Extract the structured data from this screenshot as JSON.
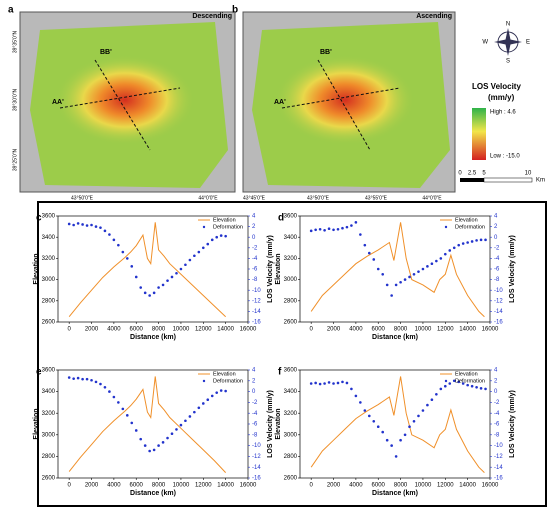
{
  "maps": [
    {
      "letter": "a",
      "mode": "Descending",
      "lines": [
        "BB'",
        "AA'"
      ],
      "xticks": [
        "43°50'0\"E",
        "44°0'0\"E"
      ],
      "yticks": [
        "39°35'0\"N",
        "39°30'0\"N",
        "39°25'0\"N"
      ]
    },
    {
      "letter": "b",
      "mode": "Ascending",
      "lines": [
        "BB'",
        "AA'"
      ],
      "xticks": [
        "43°45'0\"E",
        "43°50'0\"E",
        "43°55'0\"E",
        "44°0'0\"E"
      ]
    }
  ],
  "legend": {
    "compass": [
      "N",
      "E",
      "S",
      "W"
    ],
    "title": "LOS Velocity",
    "unit": "(mm/y)",
    "high": "High : 4.6",
    "low": "Low : -15.0",
    "scale": [
      "0",
      "2.5",
      "5",
      "10",
      "Km"
    ]
  },
  "chart_data": [
    {
      "type": "line",
      "letter": "c",
      "xlabel": "Distance (km)",
      "ylabel": "Elevation",
      "y2label": "LOS Velocity (mm/y)",
      "legend": "top-right",
      "xlim": [
        -1000,
        16000
      ],
      "xticks": [
        0,
        2000,
        4000,
        6000,
        8000,
        10000,
        12000,
        14000,
        16000
      ],
      "ylim": [
        2600,
        3600
      ],
      "yticks": [
        2600,
        2800,
        3000,
        3200,
        3400,
        3600
      ],
      "y2lim": [
        -16,
        4
      ],
      "y2ticks": [
        -16,
        -14,
        -12,
        -10,
        -8,
        -6,
        -4,
        -2,
        0,
        2,
        4
      ],
      "series": [
        {
          "name": "Elevation",
          "color": "#f0902a",
          "x": [
            0,
            1000,
            2000,
            3000,
            4000,
            5000,
            5500,
            6000,
            6600,
            7000,
            7300,
            7700,
            8000,
            8500,
            9000,
            10000,
            11000,
            12000,
            13000,
            14000
          ],
          "values": [
            2650,
            2780,
            2900,
            3020,
            3120,
            3210,
            3260,
            3320,
            3420,
            3200,
            3150,
            3540,
            3280,
            3220,
            3150,
            3050,
            2950,
            2850,
            2750,
            2650
          ]
        },
        {
          "name": "Deformation",
          "color": "#2233cc",
          "axis": "y2",
          "x": [
            0,
            400,
            800,
            1200,
            1600,
            2000,
            2400,
            2800,
            3200,
            3600,
            4000,
            4400,
            4800,
            5200,
            5600,
            6000,
            6400,
            6800,
            7200,
            7600,
            8000,
            8400,
            8800,
            9200,
            9600,
            10000,
            10400,
            10800,
            11200,
            11600,
            12000,
            12400,
            12800,
            13200,
            13600,
            14000
          ],
          "values": [
            2.5,
            2.3,
            2.6,
            2.4,
            2.2,
            2.3,
            2.0,
            1.8,
            1.2,
            0.5,
            -0.5,
            -1.5,
            -2.8,
            -4.0,
            -5.5,
            -7.5,
            -9.5,
            -10.5,
            -11,
            -10.5,
            -9.5,
            -9,
            -8.2,
            -7.5,
            -6.8,
            -6,
            -5.2,
            -4.3,
            -3.5,
            -2.8,
            -2,
            -1.3,
            -0.5,
            0,
            0.3,
            0.2
          ]
        }
      ]
    },
    {
      "type": "line",
      "letter": "d",
      "xlabel": "Distance (km)",
      "ylabel": "Elevation",
      "y2label": "LOS Velocity (mm/y)",
      "legend": "top-right",
      "xlim": [
        -1000,
        16000
      ],
      "xticks": [
        0,
        2000,
        4000,
        6000,
        8000,
        10000,
        12000,
        14000,
        16000
      ],
      "ylim": [
        2600,
        3600
      ],
      "yticks": [
        2600,
        2800,
        3000,
        3200,
        3400,
        3600
      ],
      "y2lim": [
        -16,
        4
      ],
      "y2ticks": [
        -16,
        -14,
        -12,
        -10,
        -8,
        -6,
        -4,
        -2,
        0,
        2,
        4
      ],
      "series": [
        {
          "name": "Elevation",
          "color": "#f0902a",
          "x": [
            0,
            1000,
            2000,
            3000,
            4000,
            5000,
            6000,
            7000,
            7400,
            8000,
            8500,
            9000,
            10000,
            11000,
            11500,
            12000,
            12500,
            13000,
            14000,
            15000,
            15500
          ],
          "values": [
            2700,
            2850,
            2950,
            3050,
            3150,
            3220,
            3280,
            3350,
            3180,
            3540,
            3200,
            3000,
            2950,
            2880,
            3000,
            3050,
            3230,
            3050,
            2850,
            2700,
            2650
          ]
        },
        {
          "name": "Deformation",
          "color": "#2233cc",
          "axis": "y2",
          "x": [
            0,
            400,
            800,
            1200,
            1600,
            2000,
            2400,
            2800,
            3200,
            3600,
            4000,
            4400,
            4800,
            5200,
            5600,
            6000,
            6400,
            6800,
            7200,
            7600,
            8000,
            8400,
            8800,
            9200,
            9600,
            10000,
            10400,
            10800,
            11200,
            11600,
            12000,
            12400,
            12800,
            13200,
            13600,
            14000,
            14400,
            14800,
            15200,
            15600
          ],
          "values": [
            1.2,
            1.4,
            1.5,
            1.3,
            1.6,
            1.4,
            1.5,
            1.7,
            1.9,
            2.2,
            2.8,
            0.5,
            -1.5,
            -3,
            -4.2,
            -6,
            -7,
            -9,
            -11,
            -9,
            -8.5,
            -8,
            -7.5,
            -7,
            -6.5,
            -6,
            -5.5,
            -5,
            -4.5,
            -4,
            -3.2,
            -2.5,
            -2,
            -1.5,
            -1.2,
            -1,
            -0.8,
            -0.6,
            -0.5,
            -0.5
          ]
        }
      ]
    },
    {
      "type": "line",
      "letter": "e",
      "xlabel": "Distance (km)",
      "ylabel": "Elevation",
      "y2label": "LOS Velocity (mm/y)",
      "legend": "top-right",
      "xlim": [
        -1000,
        16000
      ],
      "xticks": [
        0,
        2000,
        4000,
        6000,
        8000,
        10000,
        12000,
        14000,
        16000
      ],
      "ylim": [
        2600,
        3600
      ],
      "yticks": [
        2600,
        2800,
        3000,
        3200,
        3400,
        3600
      ],
      "y2lim": [
        -16,
        4
      ],
      "y2ticks": [
        -16,
        -14,
        -12,
        -10,
        -8,
        -6,
        -4,
        -2,
        0,
        2,
        4
      ],
      "series": [
        {
          "name": "Elevation",
          "color": "#f0902a",
          "x": [
            0,
            1000,
            2000,
            3000,
            4000,
            5000,
            5500,
            6000,
            6600,
            7000,
            7300,
            7700,
            8000,
            8500,
            9000,
            10000,
            11000,
            12000,
            13000,
            14000
          ],
          "values": [
            2660,
            2790,
            2910,
            3030,
            3130,
            3220,
            3270,
            3330,
            3420,
            3210,
            3160,
            3540,
            3290,
            3230,
            3160,
            3060,
            2960,
            2860,
            2760,
            2650
          ]
        },
        {
          "name": "Deformation",
          "color": "#2233cc",
          "axis": "y2",
          "x": [
            0,
            400,
            800,
            1200,
            1600,
            2000,
            2400,
            2800,
            3200,
            3600,
            4000,
            4400,
            4800,
            5200,
            5600,
            6000,
            6400,
            6800,
            7200,
            7600,
            8000,
            8400,
            8800,
            9200,
            9600,
            10000,
            10400,
            10800,
            11200,
            11600,
            12000,
            12400,
            12800,
            13200,
            13600,
            14000
          ],
          "values": [
            2.6,
            2.4,
            2.5,
            2.3,
            2.3,
            2.1,
            1.8,
            1.4,
            0.8,
            0,
            -1,
            -2,
            -3.2,
            -4.4,
            -5.8,
            -7.2,
            -8.8,
            -10,
            -11,
            -10.8,
            -10,
            -9.4,
            -8.6,
            -7.8,
            -7,
            -6.2,
            -5.4,
            -4.6,
            -3.8,
            -3,
            -2.2,
            -1.5,
            -0.8,
            -0.2,
            0.2,
            0.1
          ]
        }
      ]
    },
    {
      "type": "line",
      "letter": "f",
      "xlabel": "Distance (km)",
      "ylabel": "Elevation",
      "y2label": "LOS Velocity (mm/y)",
      "legend": "top-right",
      "xlim": [
        -1000,
        16000
      ],
      "xticks": [
        0,
        2000,
        4000,
        6000,
        8000,
        10000,
        12000,
        14000,
        16000
      ],
      "ylim": [
        2600,
        3600
      ],
      "yticks": [
        2600,
        2800,
        3000,
        3200,
        3400,
        3600
      ],
      "y2lim": [
        -16,
        4
      ],
      "y2ticks": [
        -16,
        -14,
        -12,
        -10,
        -8,
        -6,
        -4,
        -2,
        0,
        2,
        4
      ],
      "series": [
        {
          "name": "Elevation",
          "color": "#f0902a",
          "x": [
            0,
            1000,
            2000,
            3000,
            4000,
            5000,
            6000,
            7000,
            7400,
            8000,
            8500,
            9000,
            10000,
            11000,
            11500,
            12000,
            12500,
            13000,
            14000,
            15000,
            15500
          ],
          "values": [
            2700,
            2850,
            2950,
            3050,
            3150,
            3220,
            3280,
            3350,
            3180,
            3540,
            3200,
            3000,
            2950,
            2880,
            3000,
            3050,
            3230,
            3050,
            2850,
            2700,
            2650
          ]
        },
        {
          "name": "Deformation",
          "color": "#2233cc",
          "axis": "y2",
          "x": [
            0,
            400,
            800,
            1200,
            1600,
            2000,
            2400,
            2800,
            3200,
            3600,
            4000,
            4400,
            4800,
            5200,
            5600,
            6000,
            6400,
            6800,
            7200,
            7600,
            8000,
            8400,
            8800,
            9200,
            9600,
            10000,
            10400,
            10800,
            11200,
            11600,
            12000,
            12400,
            12800,
            13200,
            13600,
            14000,
            14400,
            14800,
            15200,
            15600
          ],
          "values": [
            1.5,
            1.6,
            1.4,
            1.5,
            1.7,
            1.5,
            1.6,
            1.8,
            1.6,
            0.5,
            -0.8,
            -2,
            -3.5,
            -4.5,
            -5.5,
            -6.5,
            -7.5,
            -9,
            -10,
            -12,
            -9,
            -8,
            -6.5,
            -5.5,
            -4.5,
            -3.5,
            -2.5,
            -1.5,
            -0.5,
            0.5,
            1,
            1.5,
            2,
            1.8,
            1.5,
            1.2,
            1,
            0.8,
            0.6,
            0.5
          ]
        }
      ]
    }
  ]
}
